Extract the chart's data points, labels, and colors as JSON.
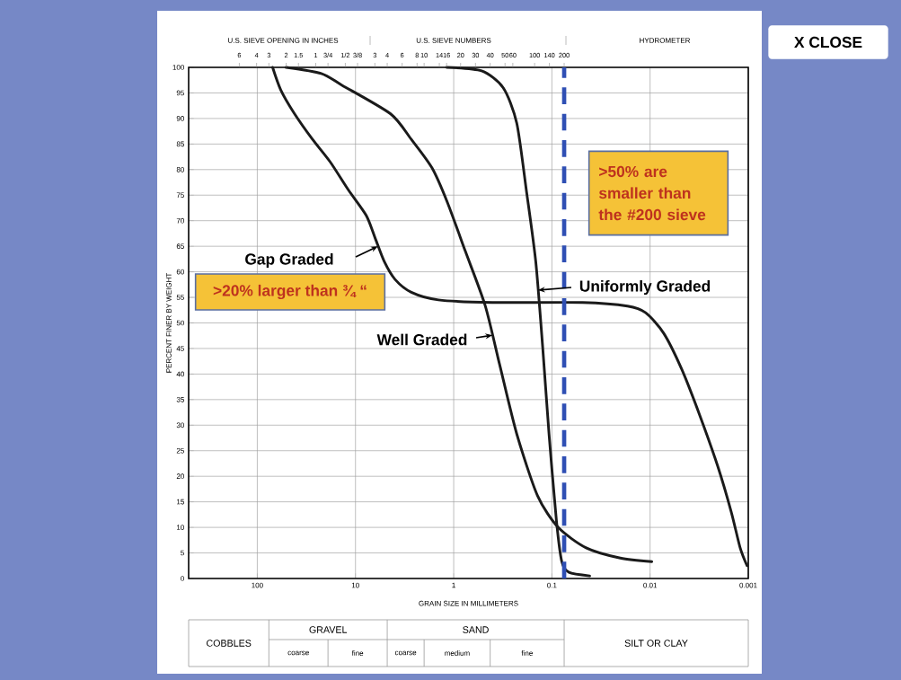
{
  "chart_data": {
    "type": "line",
    "log": "x",
    "grid": true,
    "xlabel": "GRAIN SIZE IN MILLIMETERS",
    "ylabel": "PERCENT FINER BY WEIGHT",
    "xlim": [
      500,
      0.001
    ],
    "xticks": [
      100,
      10,
      1,
      0.1,
      0.01,
      0.001
    ],
    "ylim": [
      0,
      100
    ],
    "yticks": [
      0,
      5,
      10,
      15,
      20,
      25,
      30,
      35,
      40,
      45,
      50,
      55,
      60,
      65,
      70,
      75,
      80,
      85,
      90,
      95,
      100
    ],
    "series": [
      {
        "color": "#1a1a1a",
        "x": [
          69.8,
          57.7,
          42,
          27.6,
          18.1,
          11.8,
          7.76,
          6.28,
          5.09,
          3.95,
          2.7,
          1.43,
          0.403,
          0.0488,
          0.017,
          0.0111,
          0.00728,
          0.00478,
          0.00313,
          0.00205,
          0.00149,
          0.00121,
          0.00103
        ],
        "values": [
          100,
          95.6,
          91,
          86,
          81.5,
          76,
          71,
          66.5,
          62,
          58.5,
          56,
          54.5,
          54,
          54,
          53.3,
          52,
          48,
          41,
          32,
          22,
          13,
          6,
          2.5
        ]
      },
      {
        "color": "#1a1a1a",
        "x": [
          50.9,
          22.3,
          13.7,
          4.39,
          2.7,
          1.66,
          1.16,
          0.76,
          0.478,
          0.34,
          0.228,
          0.14,
          0.0863,
          0.0448,
          0.0201,
          0.0096
        ],
        "values": [
          100,
          98.8,
          96.5,
          90.9,
          85.9,
          80.3,
          73.6,
          64,
          53.4,
          41.8,
          28.3,
          16.2,
          10,
          6,
          4,
          3.3
        ]
      },
      {
        "color": "#1a1a1a",
        "x": [
          1.18,
          0.519,
          0.313,
          0.228,
          0.181,
          0.146,
          0.124,
          0.107,
          0.09,
          0.0793,
          0.067,
          0.0412
        ],
        "values": [
          100,
          99.3,
          96,
          89.1,
          75.6,
          62,
          45.2,
          28.3,
          11.4,
          3.3,
          1.2,
          0.5
        ]
      }
    ],
    "ref_lines": [
      {
        "axis": "x",
        "value": 0.075,
        "color": "#2f4fb4",
        "line_style": "dashed"
      }
    ],
    "annotations": [
      "U.S. SIEVE OPENING IN INCHES",
      "U.S. SIEVE NUMBERS",
      "HYDROMETER",
      {
        "text": "Gap Graded",
        "x": 5.9,
        "y": 65
      },
      {
        "text": "Well Graded",
        "x": 0.403,
        "y": 47.6
      },
      {
        "text": "Uniformly Graded",
        "x": 0.139,
        "y": 56.4
      },
      ">20% larger than ¾ “",
      ">50% are smaller than the #200 sieve",
      "COBBLES",
      "GRAVEL",
      "coarse",
      "fine",
      "SAND",
      "coarse",
      "medium",
      "fine",
      "SILT OR CLAY",
      "X CLOSE",
      "6",
      "4",
      "3",
      "2",
      "1.5",
      "1",
      "3/4",
      "1/2",
      "3/8",
      "3",
      "4",
      "6",
      "8",
      "10",
      "14",
      "16",
      "20",
      "30",
      "40",
      "50",
      "60",
      "100",
      "140",
      "200"
    ]
  }
}
